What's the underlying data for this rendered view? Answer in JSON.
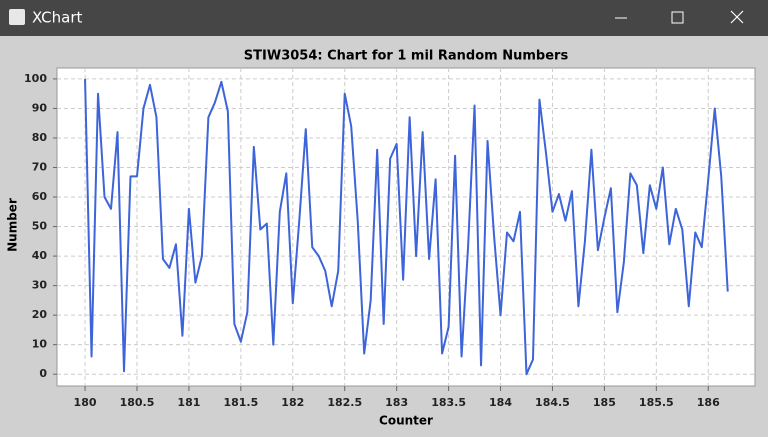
{
  "window": {
    "title": "XChart"
  },
  "chart_data": {
    "type": "line",
    "title": "STIW3054: Chart for 1 mil Random Numbers",
    "x_label": "Counter",
    "y_label": "Number",
    "color": "#3d64d9",
    "grid": true,
    "x": [
      180,
      180.0625,
      180.125,
      180.1875,
      180.25,
      180.3125,
      180.375,
      180.4375,
      180.5,
      180.5625,
      180.625,
      180.6875,
      180.75,
      180.8125,
      180.875,
      180.9375,
      181,
      181.0625,
      181.125,
      181.1875,
      181.25,
      181.3125,
      181.375,
      181.4375,
      181.5,
      181.5625,
      181.625,
      181.6875,
      181.75,
      181.8125,
      181.875,
      181.9375,
      182,
      182.0625,
      182.125,
      182.1875,
      182.25,
      182.3125,
      182.375,
      182.4375,
      182.5,
      182.5625,
      182.625,
      182.6875,
      182.75,
      182.8125,
      182.875,
      182.9375,
      183,
      183.0625,
      183.125,
      183.1875,
      183.25,
      183.3125,
      183.375,
      183.4375,
      183.5,
      183.5625,
      183.625,
      183.6875,
      183.75,
      183.8125,
      183.875,
      183.9375,
      184,
      184.0625,
      184.125,
      184.1875,
      184.25,
      184.3125,
      184.375,
      184.4375,
      184.5,
      184.5625,
      184.625,
      184.6875,
      184.75,
      184.8125,
      184.875,
      184.9375,
      185,
      185.0625,
      185.125,
      185.1875,
      185.25,
      185.3125,
      185.375,
      185.4375,
      185.5,
      185.5625,
      185.625,
      185.6875,
      185.75,
      185.8125,
      185.875,
      185.9375,
      186,
      186.0625,
      186.125,
      186.1875
    ],
    "values": [
      100,
      6,
      95,
      60,
      56,
      82,
      1,
      67,
      67,
      90,
      98,
      87,
      39,
      36,
      44,
      13,
      56,
      31,
      40,
      87,
      92,
      99,
      89,
      17,
      11,
      21,
      77,
      49,
      51,
      10,
      55,
      68,
      24,
      52,
      83,
      43,
      40,
      35,
      23,
      35,
      95,
      84,
      52,
      7,
      25,
      76,
      17,
      73,
      78,
      32,
      87,
      40,
      82,
      39,
      66,
      7,
      16,
      74,
      6,
      43,
      91,
      3,
      79,
      47,
      20,
      48,
      45,
      55,
      0,
      5,
      93,
      75,
      55,
      61,
      52,
      62,
      23,
      45,
      76,
      42,
      53,
      63,
      21,
      38,
      68,
      64,
      41,
      64,
      56,
      70,
      44,
      56,
      49,
      23,
      48,
      43,
      66,
      90,
      67,
      28
    ],
    "xlim": [
      179.73,
      186.45
    ],
    "ylim": [
      -4,
      103.7
    ],
    "xticks": [
      180,
      180.5,
      181,
      181.5,
      182,
      182.5,
      183,
      183.5,
      184,
      184.5,
      185,
      185.5,
      186
    ],
    "yticks": [
      0,
      10,
      20,
      30,
      40,
      50,
      60,
      70,
      80,
      90,
      100
    ]
  }
}
